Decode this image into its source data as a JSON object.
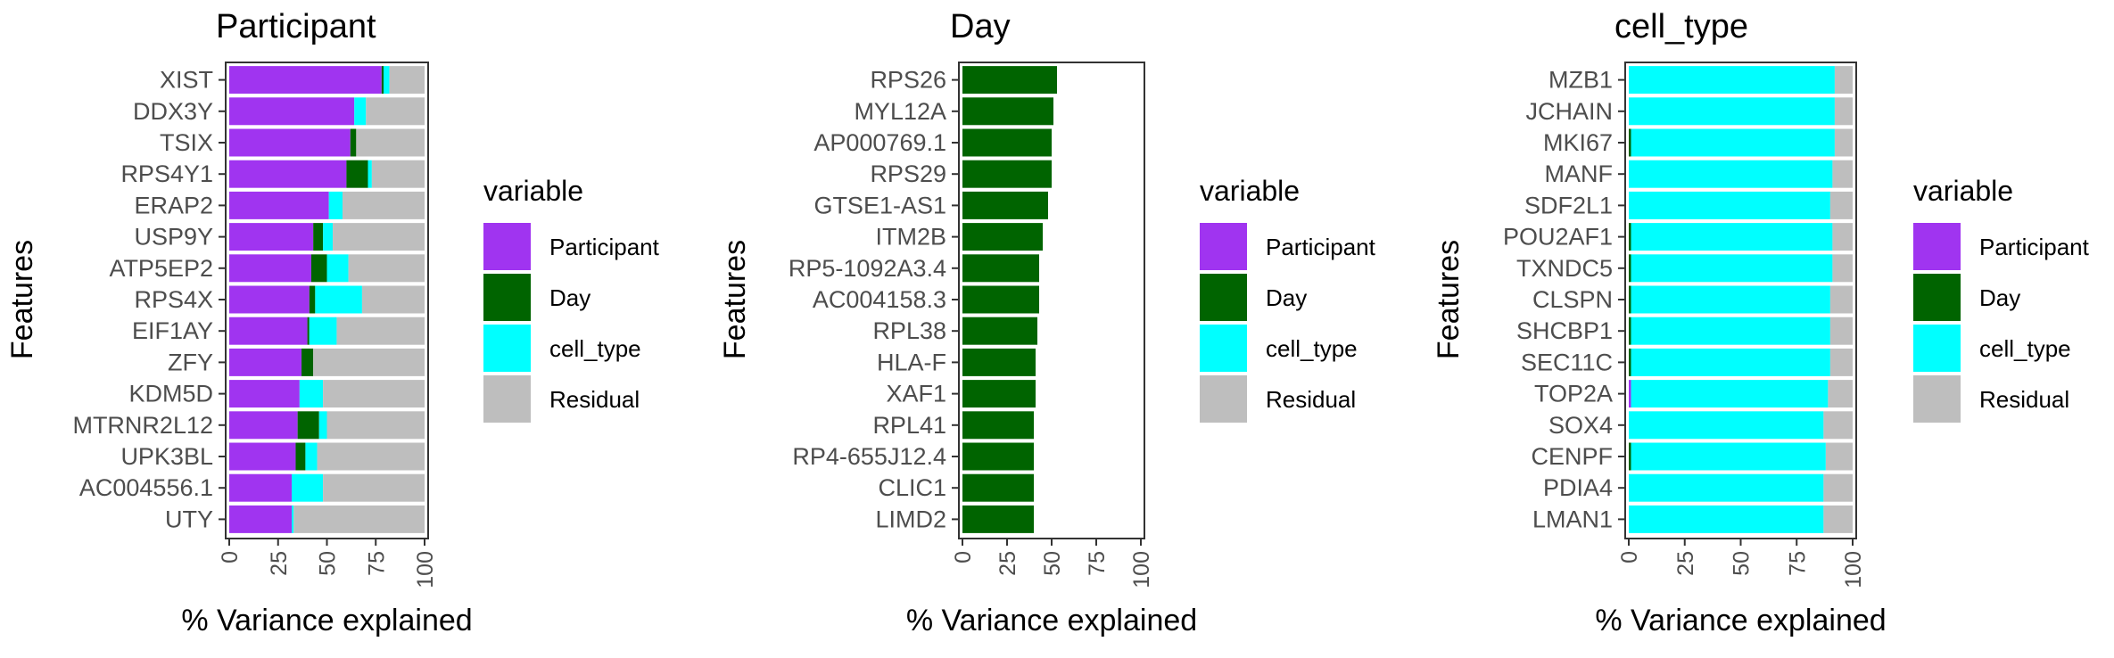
{
  "colors": {
    "Participant": "#A034F0",
    "Day": "#006400",
    "cell_type": "#00FFFF",
    "Residual": "#BEBEBE"
  },
  "legend": {
    "title": "variable",
    "items": [
      "Participant",
      "Day",
      "cell_type",
      "Residual"
    ]
  },
  "axis_titles": {
    "x": "% Variance explained",
    "y": "Features"
  },
  "chart_data": [
    {
      "type": "bar",
      "stacked": true,
      "orientation": "horizontal",
      "title": "Participant",
      "xlabel": "% Variance explained",
      "ylabel": "Features",
      "xlim": [
        0,
        100
      ],
      "xticks": [
        0,
        25,
        50,
        75,
        100
      ],
      "categories": [
        "XIST",
        "DDX3Y",
        "TSIX",
        "RPS4Y1",
        "ERAP2",
        "USP9Y",
        "ATP5EP2",
        "RPS4X",
        "EIF1AY",
        "ZFY",
        "KDM5D",
        "MTRNR2L12",
        "UPK3BL",
        "AC004556.1",
        "UTY"
      ],
      "series": [
        {
          "name": "Participant",
          "values": [
            78,
            64,
            62,
            60,
            51,
            43,
            42,
            41,
            40,
            37,
            36,
            35,
            34,
            32,
            32
          ]
        },
        {
          "name": "Day",
          "values": [
            1,
            0,
            3,
            11,
            0,
            5,
            8,
            3,
            1,
            6,
            0,
            11,
            5,
            0,
            0
          ]
        },
        {
          "name": "cell_type",
          "values": [
            3,
            6,
            0,
            2,
            7,
            5,
            11,
            24,
            14,
            0,
            12,
            4,
            6,
            16,
            1
          ]
        },
        {
          "name": "Residual",
          "values": [
            18,
            30,
            35,
            27,
            42,
            47,
            39,
            32,
            45,
            57,
            52,
            50,
            55,
            52,
            67
          ]
        }
      ]
    },
    {
      "type": "bar",
      "stacked": true,
      "orientation": "horizontal",
      "title": "Day",
      "xlabel": "% Variance explained",
      "ylabel": "Features",
      "xlim": [
        0,
        100
      ],
      "xticks": [
        0,
        25,
        50,
        75,
        100
      ],
      "categories": [
        "RPS26",
        "MYL12A",
        "AP000769.1",
        "RPS29",
        "GTSE1-AS1",
        "ITM2B",
        "RP5-1092A3.4",
        "AC004158.3",
        "RPL38",
        "HLA-F",
        "XAF1",
        "RPL41",
        "RP4-655J12.4",
        "CLIC1",
        "LIMD2"
      ],
      "series": [
        {
          "name": "Participant",
          "values": [
            0,
            0,
            0,
            0,
            0,
            0,
            0,
            0,
            0,
            0,
            0,
            0,
            0,
            0,
            0
          ]
        },
        {
          "name": "Day",
          "values": [
            53,
            51,
            50,
            50,
            48,
            45,
            43,
            43,
            42,
            41,
            41,
            40,
            40,
            40,
            40
          ]
        },
        {
          "name": "cell_type",
          "values": [
            0,
            0,
            0,
            0,
            0,
            0,
            0,
            0,
            0,
            0,
            0,
            0,
            0,
            0,
            0
          ]
        },
        {
          "name": "Residual",
          "values": [
            0,
            0,
            0,
            0,
            0,
            0,
            0,
            0,
            0,
            0,
            0,
            0,
            0,
            0,
            0
          ]
        }
      ]
    },
    {
      "type": "bar",
      "stacked": true,
      "orientation": "horizontal",
      "title": "cell_type",
      "xlabel": "% Variance explained",
      "ylabel": "Features",
      "xlim": [
        0,
        100
      ],
      "xticks": [
        0,
        25,
        50,
        75,
        100
      ],
      "categories": [
        "MZB1",
        "JCHAIN",
        "MKI67",
        "MANF",
        "SDF2L1",
        "POU2AF1",
        "TXNDC5",
        "CLSPN",
        "SHCBP1",
        "SEC11C",
        "TOP2A",
        "SOX4",
        "CENPF",
        "PDIA4",
        "LMAN1"
      ],
      "series": [
        {
          "name": "Participant",
          "values": [
            0,
            0,
            0,
            0,
            0,
            0,
            0,
            0,
            0,
            0,
            1,
            0,
            0,
            0,
            0
          ]
        },
        {
          "name": "Day",
          "values": [
            0,
            0,
            1,
            0,
            0,
            1,
            1,
            1,
            1,
            1,
            0,
            0,
            1,
            0,
            0
          ]
        },
        {
          "name": "cell_type",
          "values": [
            92,
            92,
            91,
            91,
            90,
            90,
            90,
            89,
            89,
            89,
            88,
            87,
            87,
            87,
            87
          ]
        },
        {
          "name": "Residual",
          "values": [
            8,
            8,
            8,
            9,
            10,
            9,
            9,
            10,
            10,
            10,
            11,
            13,
            12,
            13,
            13
          ]
        }
      ]
    }
  ]
}
